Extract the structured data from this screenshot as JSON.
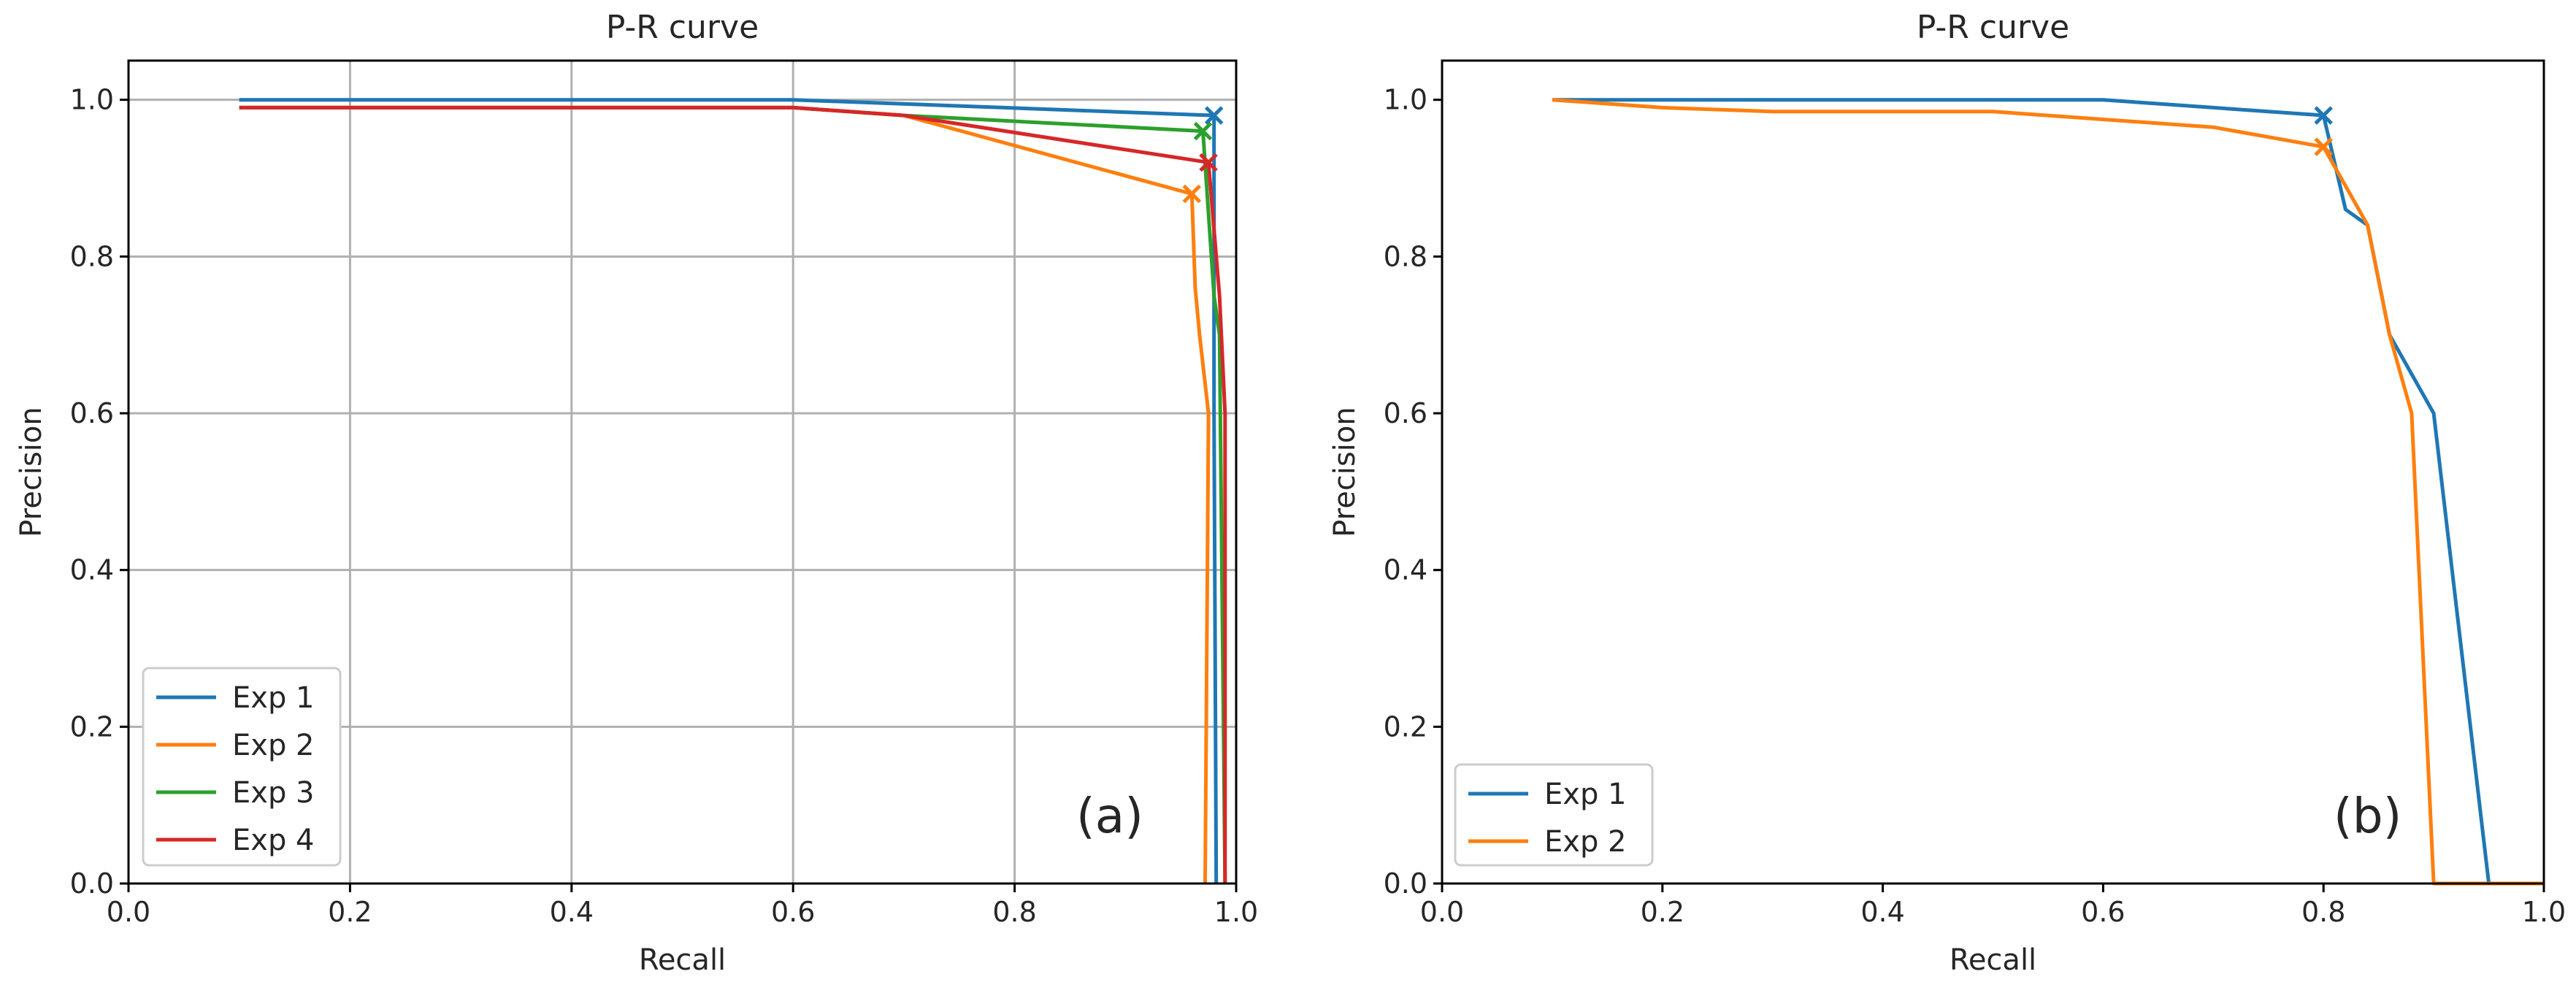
{
  "chart_data": [
    {
      "type": "line",
      "title": "P-R curve",
      "xlabel": "Recall",
      "ylabel": "Precision",
      "xlim": [
        0.0,
        1.0
      ],
      "ylim": [
        0.0,
        1.05
      ],
      "xticks": [
        "0.0",
        "0.2",
        "0.4",
        "0.6",
        "0.8",
        "1.0"
      ],
      "yticks": [
        "0.0",
        "0.2",
        "0.4",
        "0.6",
        "0.8",
        "1.0"
      ],
      "grid": true,
      "legend_position": "lower-left",
      "panel_label": "(a)",
      "series": [
        {
          "name": "Exp 1",
          "color": "#1f77b4",
          "points": [
            [
              0.1,
              1.0
            ],
            [
              0.6,
              1.0
            ],
            [
              0.98,
              0.98
            ],
            [
              0.98,
              0.6
            ],
            [
              0.982,
              0.0
            ]
          ],
          "best_point": [
            0.98,
            0.98
          ]
        },
        {
          "name": "Exp 2",
          "color": "#ff7f0e",
          "points": [
            [
              0.1,
              0.99
            ],
            [
              0.6,
              0.99
            ],
            [
              0.7,
              0.98
            ],
            [
              0.96,
              0.88
            ],
            [
              0.963,
              0.76
            ],
            [
              0.967,
              0.7
            ],
            [
              0.975,
              0.6
            ],
            [
              0.972,
              0.0
            ]
          ],
          "best_point": [
            0.96,
            0.88
          ]
        },
        {
          "name": "Exp 3",
          "color": "#2ca02c",
          "points": [
            [
              0.1,
              0.99
            ],
            [
              0.6,
              0.99
            ],
            [
              0.7,
              0.98
            ],
            [
              0.97,
              0.96
            ],
            [
              0.98,
              0.75
            ],
            [
              0.985,
              0.7
            ],
            [
              0.99,
              0.0
            ]
          ],
          "best_point": [
            0.97,
            0.96
          ]
        },
        {
          "name": "Exp 4",
          "color": "#d62728",
          "points": [
            [
              0.1,
              0.99
            ],
            [
              0.6,
              0.99
            ],
            [
              0.7,
              0.98
            ],
            [
              0.975,
              0.92
            ],
            [
              0.985,
              0.75
            ],
            [
              0.99,
              0.6
            ],
            [
              0.99,
              0.0
            ]
          ],
          "best_point": [
            0.975,
            0.92
          ]
        }
      ]
    },
    {
      "type": "line",
      "title": "P-R curve",
      "xlabel": "Recall",
      "ylabel": "Precision",
      "xlim": [
        0.0,
        1.0
      ],
      "ylim": [
        0.0,
        1.05
      ],
      "xticks": [
        "0.0",
        "0.2",
        "0.4",
        "0.6",
        "0.8",
        "1.0"
      ],
      "yticks": [
        "0.0",
        "0.2",
        "0.4",
        "0.6",
        "0.8",
        "1.0"
      ],
      "grid": false,
      "legend_position": "lower-left",
      "panel_label": "(b)",
      "series": [
        {
          "name": "Exp 1",
          "color": "#1f77b4",
          "points": [
            [
              0.1,
              1.0
            ],
            [
              0.6,
              1.0
            ],
            [
              0.8,
              0.98
            ],
            [
              0.82,
              0.86
            ],
            [
              0.84,
              0.84
            ],
            [
              0.86,
              0.7
            ],
            [
              0.9,
              0.6
            ],
            [
              0.95,
              0.0
            ],
            [
              1.0,
              0.0
            ]
          ],
          "best_point": [
            0.8,
            0.98
          ]
        },
        {
          "name": "Exp 2",
          "color": "#ff7f0e",
          "points": [
            [
              0.1,
              1.0
            ],
            [
              0.2,
              0.99
            ],
            [
              0.3,
              0.985
            ],
            [
              0.5,
              0.985
            ],
            [
              0.7,
              0.965
            ],
            [
              0.8,
              0.94
            ],
            [
              0.82,
              0.89
            ],
            [
              0.84,
              0.84
            ],
            [
              0.86,
              0.7
            ],
            [
              0.88,
              0.6
            ],
            [
              0.9,
              0.0
            ],
            [
              1.0,
              0.0
            ]
          ],
          "best_point": [
            0.8,
            0.94
          ]
        }
      ]
    }
  ]
}
